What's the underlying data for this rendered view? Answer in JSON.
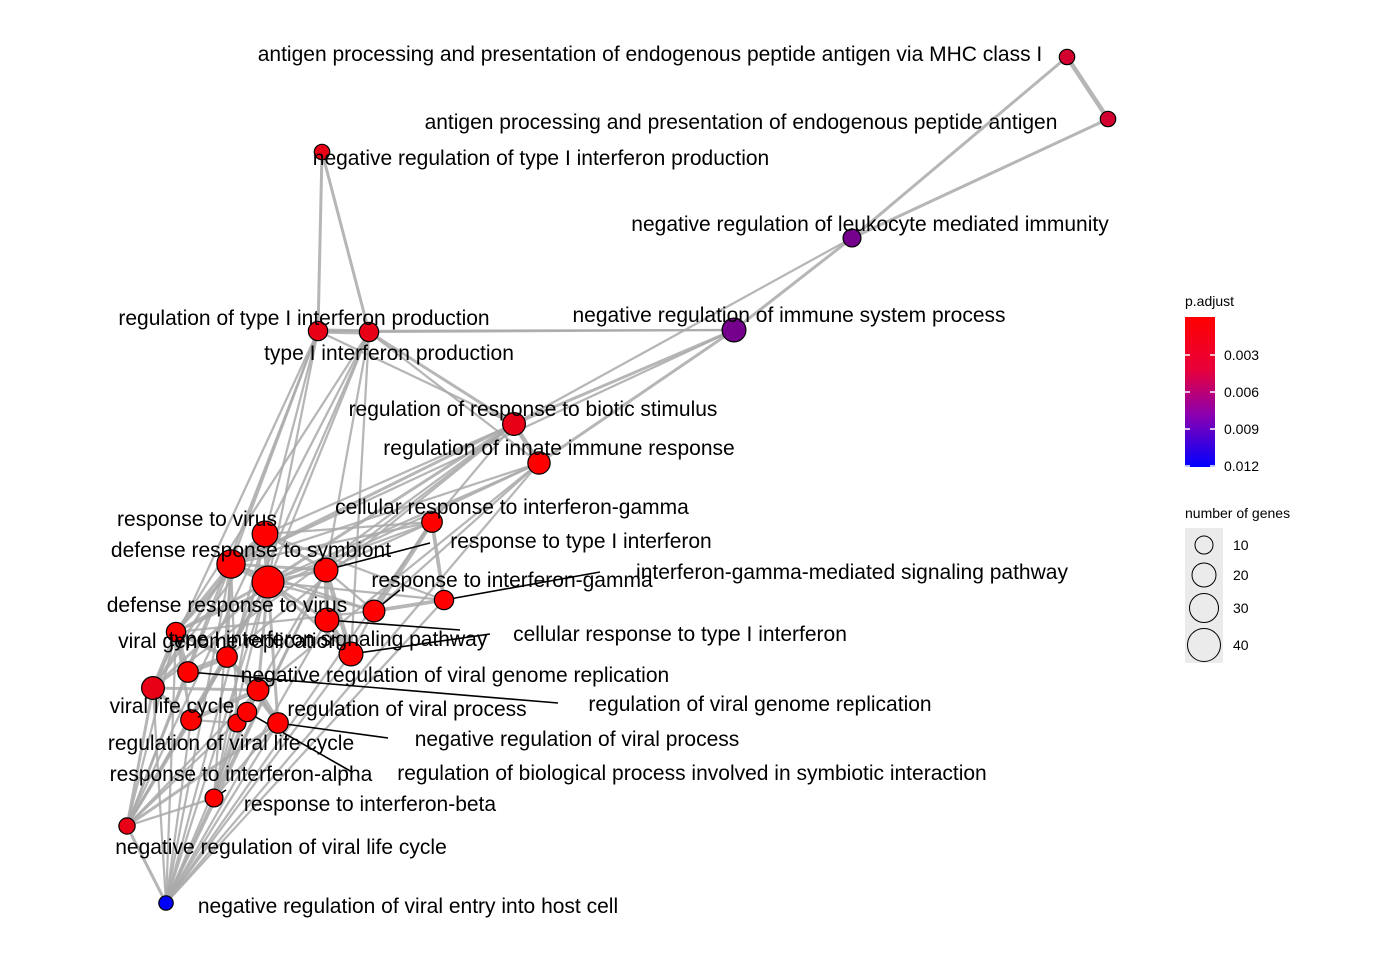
{
  "nodes": [
    {
      "id": "ap_mhc1",
      "label": "antigen processing and presentation of endogenous peptide antigen via MHC class I",
      "padj": 0.003,
      "genes": 5
    },
    {
      "id": "ap_endo",
      "label": "antigen processing and presentation of endogenous peptide antigen",
      "padj": 0.003,
      "genes": 5
    },
    {
      "id": "neg_t1ifn_prod",
      "label": "negative regulation of type I interferon production",
      "padj": 0.002,
      "genes": 5
    },
    {
      "id": "neg_leuk",
      "label": "negative regulation of leukocyte mediated immunity",
      "padj": 0.007,
      "genes": 8
    },
    {
      "id": "reg_t1ifn_prod",
      "label": "regulation of type I interferon production",
      "padj": 0.002,
      "genes": 10
    },
    {
      "id": "t1ifn_prod",
      "label": "type I interferon production",
      "padj": 0.002,
      "genes": 10
    },
    {
      "id": "neg_immune",
      "label": "negative regulation of immune system process",
      "padj": 0.007,
      "genes": 18
    },
    {
      "id": "reg_biotic",
      "label": "regulation of response to biotic stimulus",
      "padj": 0.002,
      "genes": 16
    },
    {
      "id": "reg_innate",
      "label": "regulation of innate immune response",
      "padj": 0.001,
      "genes": 15
    },
    {
      "id": "cell_ifng",
      "label": "cellular response to interferon-gamma",
      "padj": 0.001,
      "genes": 12
    },
    {
      "id": "resp_virus",
      "label": "response to virus",
      "padj": 0.001,
      "genes": 22
    },
    {
      "id": "resp_t1ifn",
      "label": "response to type I interferon",
      "padj": 0.001,
      "genes": 18
    },
    {
      "id": "def_symb",
      "label": "defense response to symbiont",
      "padj": 0.001,
      "genes": 28
    },
    {
      "id": "resp_ifng",
      "label": "response to interferon-gamma",
      "padj": 0.001,
      "genes": 14
    },
    {
      "id": "ifng_path",
      "label": "interferon-gamma-mediated signaling pathway",
      "padj": 0.001,
      "genes": 10
    },
    {
      "id": "def_virus",
      "label": "defense response to virus",
      "padj": 0.001,
      "genes": 38
    },
    {
      "id": "cell_t1ifn",
      "label": "cellular response to type I interferon",
      "padj": 0.001,
      "genes": 18
    },
    {
      "id": "viral_gen_rep",
      "label": "viral genome replication",
      "padj": 0.001,
      "genes": 10
    },
    {
      "id": "t1ifn_path",
      "label": "type I interferon signaling pathway",
      "padj": 0.001,
      "genes": 18
    },
    {
      "id": "neg_viral_gen_rep",
      "label": "negative regulation of viral genome replication",
      "padj": 0.001,
      "genes": 12
    },
    {
      "id": "viral_life",
      "label": "viral life cycle",
      "padj": 0.002,
      "genes": 16
    },
    {
      "id": "reg_viral_gen_rep",
      "label": "regulation of viral genome replication",
      "padj": 0.001,
      "genes": 12
    },
    {
      "id": "reg_viral_proc",
      "label": "regulation of viral process",
      "padj": 0.001,
      "genes": 14
    },
    {
      "id": "reg_viral_life",
      "label": "regulation of viral life cycle",
      "padj": 0.001,
      "genes": 12
    },
    {
      "id": "neg_viral_proc",
      "label": "negative regulation of viral process",
      "padj": 0.001,
      "genes": 12
    },
    {
      "id": "resp_ifna",
      "label": "response to interferon-alpha",
      "padj": 0.001,
      "genes": 8
    },
    {
      "id": "reg_symb",
      "label": "regulation of biological process involved in symbiotic interaction",
      "padj": 0.001,
      "genes": 10
    },
    {
      "id": "resp_ifnb",
      "label": "response to interferon-beta",
      "padj": 0.001,
      "genes": 8
    },
    {
      "id": "neg_viral_life",
      "label": "negative regulation of viral life cycle",
      "padj": 0.002,
      "genes": 6
    },
    {
      "id": "neg_viral_entry",
      "label": "negative regulation of viral entry into host cell",
      "padj": 0.012,
      "genes": 4
    }
  ],
  "legend": {
    "color_title": "p.adjust",
    "color_ticks": [
      "0.003",
      "0.006",
      "0.009",
      "0.012"
    ],
    "color_low": "#ff0000",
    "color_high": "#0000ff",
    "size_title": "number of genes",
    "size_ticks": [
      "10",
      "20",
      "30",
      "40"
    ]
  },
  "edge_color": "#a9a9a9"
}
